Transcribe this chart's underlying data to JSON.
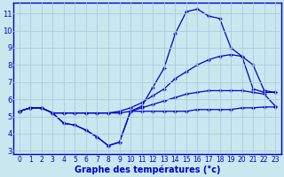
{
  "xlabel": "Graphe des températures (°c)",
  "background_color": "#c8e8f0",
  "line_color": "#0000cc",
  "grid_color": "#aaccdd",
  "xlim": [
    -0.5,
    23.5
  ],
  "ylim": [
    2.8,
    11.6
  ],
  "xticks": [
    0,
    1,
    2,
    3,
    4,
    5,
    6,
    7,
    8,
    9,
    10,
    11,
    12,
    13,
    14,
    15,
    16,
    17,
    18,
    19,
    20,
    21,
    22,
    23
  ],
  "yticks": [
    3,
    4,
    5,
    6,
    7,
    8,
    9,
    10,
    11
  ],
  "line1_x": [
    0,
    1,
    2,
    3,
    4,
    5,
    6,
    7,
    8,
    9,
    10,
    11,
    12,
    13,
    14,
    15,
    16,
    17,
    18,
    19,
    20,
    21,
    22,
    23
  ],
  "line1_y": [
    5.3,
    5.5,
    5.5,
    5.2,
    4.6,
    4.5,
    4.2,
    3.8,
    3.3,
    3.5,
    5.3,
    5.3,
    5.3,
    5.3,
    5.3,
    5.3,
    5.4,
    5.4,
    5.4,
    5.4,
    5.5,
    5.5,
    5.55,
    5.55
  ],
  "line2_x": [
    0,
    1,
    2,
    3,
    4,
    5,
    6,
    7,
    8,
    9,
    10,
    11,
    12,
    13,
    14,
    15,
    16,
    17,
    18,
    19,
    20,
    21,
    22,
    23
  ],
  "line2_y": [
    5.3,
    5.5,
    5.5,
    5.2,
    4.6,
    4.5,
    4.2,
    3.8,
    3.3,
    3.5,
    5.3,
    5.6,
    6.7,
    7.8,
    9.8,
    11.1,
    11.25,
    10.85,
    10.7,
    9.0,
    8.5,
    6.6,
    6.4,
    6.4
  ],
  "line3_x": [
    0,
    1,
    2,
    3,
    4,
    5,
    6,
    7,
    8,
    9,
    10,
    11,
    12,
    13,
    14,
    15,
    16,
    17,
    18,
    19,
    20,
    21,
    22,
    23
  ],
  "line3_y": [
    5.3,
    5.5,
    5.5,
    5.2,
    5.2,
    5.2,
    5.2,
    5.2,
    5.2,
    5.3,
    5.5,
    5.8,
    6.2,
    6.6,
    7.2,
    7.6,
    8.0,
    8.3,
    8.5,
    8.6,
    8.5,
    8.0,
    6.5,
    6.4
  ],
  "line4_x": [
    0,
    1,
    2,
    3,
    4,
    5,
    6,
    7,
    8,
    9,
    10,
    11,
    12,
    13,
    14,
    15,
    16,
    17,
    18,
    19,
    20,
    21,
    22,
    23
  ],
  "line4_y": [
    5.3,
    5.5,
    5.5,
    5.2,
    5.2,
    5.2,
    5.2,
    5.2,
    5.2,
    5.2,
    5.3,
    5.5,
    5.7,
    5.9,
    6.1,
    6.3,
    6.4,
    6.5,
    6.5,
    6.5,
    6.5,
    6.4,
    6.3,
    5.6
  ]
}
